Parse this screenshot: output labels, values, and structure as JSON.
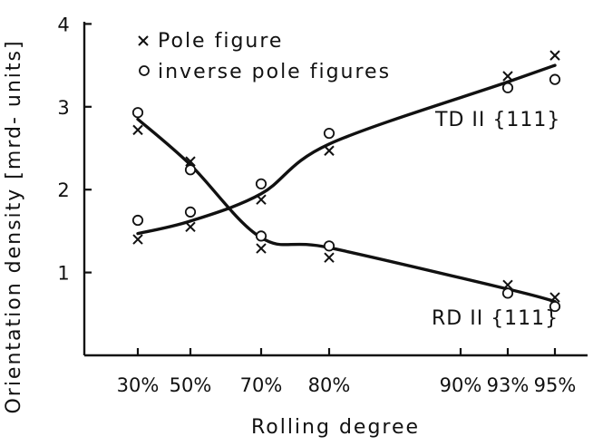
{
  "chart_data": {
    "type": "line",
    "xlabel": "Rolling degree",
    "ylabel": "Orientation density [mrd- units]",
    "x_tick_labels": [
      "30%",
      "50%",
      "70%",
      "80%",
      "90%",
      "93%",
      "95%"
    ],
    "x_tick_positions": [
      30,
      50,
      70,
      80,
      90,
      93,
      95
    ],
    "y_tick_labels": [
      "1",
      "2",
      "3",
      "4"
    ],
    "ylim": [
      0,
      4
    ],
    "legend": {
      "placement": "top-left",
      "entries": [
        {
          "marker": "x",
          "label": "Pole figure"
        },
        {
          "marker": "o",
          "label": "inverse pole figures"
        }
      ]
    },
    "annotations": [
      {
        "text": "TD II {111}",
        "curve": "TD"
      },
      {
        "text": "RD II {111}",
        "curve": "RD"
      }
    ],
    "curves": [
      {
        "id": "TD",
        "points": [
          [
            30,
            1.47
          ],
          [
            50,
            1.62
          ],
          [
            70,
            1.95
          ],
          [
            80,
            2.55
          ],
          [
            93,
            3.3
          ],
          [
            95,
            3.5
          ]
        ]
      },
      {
        "id": "RD",
        "points": [
          [
            30,
            2.85
          ],
          [
            50,
            2.3
          ],
          [
            70,
            1.42
          ],
          [
            80,
            1.3
          ],
          [
            93,
            0.8
          ],
          [
            95,
            0.65
          ]
        ]
      }
    ],
    "series": [
      {
        "curve": "TD",
        "marker": "x",
        "x": [
          30,
          50,
          70,
          80,
          93,
          95
        ],
        "values": [
          1.4,
          1.55,
          1.88,
          2.47,
          3.37,
          3.62
        ]
      },
      {
        "curve": "TD",
        "marker": "o",
        "x": [
          30,
          50,
          70,
          80,
          93,
          95
        ],
        "values": [
          1.63,
          1.73,
          2.07,
          2.68,
          3.23,
          3.33
        ]
      },
      {
        "curve": "RD",
        "marker": "x",
        "x": [
          30,
          50,
          70,
          80,
          93,
          95
        ],
        "values": [
          2.72,
          2.34,
          1.29,
          1.18,
          0.85,
          0.7
        ]
      },
      {
        "curve": "RD",
        "marker": "o",
        "x": [
          30,
          50,
          70,
          80,
          93,
          95
        ],
        "values": [
          2.93,
          2.24,
          1.44,
          1.32,
          0.75,
          0.59
        ]
      }
    ],
    "grid": false
  }
}
